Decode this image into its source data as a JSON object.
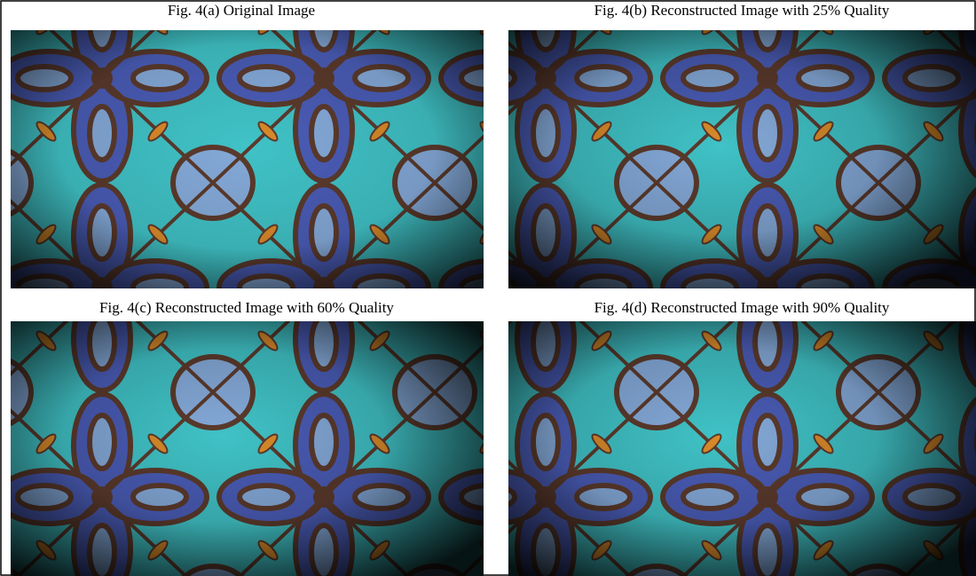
{
  "figures": [
    {
      "caption": "Fig. 4(a) Original Image"
    },
    {
      "caption": "Fig. 4(b) Reconstructed Image with 25% Quality"
    },
    {
      "caption": "Fig. 4(c) Reconstructed Image with 60% Quality"
    },
    {
      "caption": "Fig. 4(d) Reconstructed Image with 90% Quality"
    }
  ]
}
